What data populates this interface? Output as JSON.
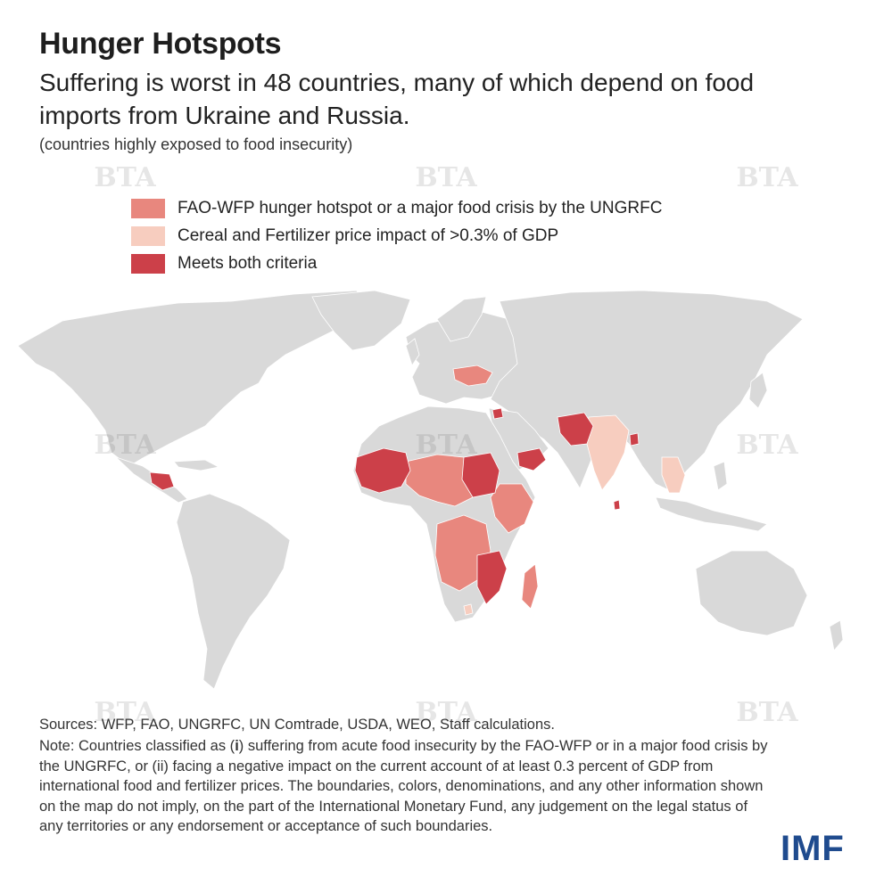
{
  "header": {
    "title": "Hunger Hotspots",
    "subtitle": "Suffering is worst in 48 countries, many of which depend on food imports from Ukraine and Russia.",
    "subnote": "(countries highly exposed to food insecurity)"
  },
  "legend": [
    {
      "label": "FAO-WFP hunger hotspot or a major food crisis by the UNGRFC",
      "color": "#e8877e"
    },
    {
      "label": "Cereal and Fertilizer price impact of >0.3% of GDP",
      "color": "#f7cdbf"
    },
    {
      "label": "Meets both criteria",
      "color": "#cc4049"
    }
  ],
  "map": {
    "land_color": "#d9d9d9",
    "categories": {
      "hotspot": [
        "Ukraine",
        "Somalia",
        "Ethiopia",
        "Kenya",
        "Nigeria",
        "DR Congo",
        "Angola",
        "Zambia",
        "Madagascar",
        "Central African Republic",
        "South Sudan",
        "Chad",
        "Niger",
        "Cameroon",
        "Uganda",
        "Tanzania",
        "Zimbabwe"
      ],
      "price_impact": [
        "India",
        "Thailand",
        "Myanmar",
        "Cambodia",
        "Lesotho"
      ],
      "both": [
        "Mali",
        "Mauritania",
        "Senegal",
        "Burkina Faso",
        "Sudan",
        "Yemen",
        "Afghanistan",
        "Pakistan",
        "Syria",
        "Mozambique",
        "Malawi",
        "Honduras",
        "Guatemala",
        "Nicaragua",
        "Bangladesh",
        "Sri Lanka"
      ]
    }
  },
  "footer": {
    "sources": "Sources: WFP, FAO, UNGRFC, UN Comtrade, USDA, WEO, Staff calculations.",
    "note_prefix": "Note: Countries classified as (",
    "note_i": "i",
    "note_mid": ") suffering from acute food insecurity by the FAO-WFP or in a major food crisis by the UNGRFC, or (",
    "note_ii": "ii",
    "note_suffix": ") facing a negative impact on the current account of at least 0.3 percent of GDP from international food and fertilizer prices. The boundaries, colors, denominations, and any other information shown on the map do not imply, on the part of the International Monetary Fund, any judgement on the legal status of any territories or any endorsement or acceptance of such boundaries.",
    "logo": "IMF"
  },
  "watermark": "BTA"
}
